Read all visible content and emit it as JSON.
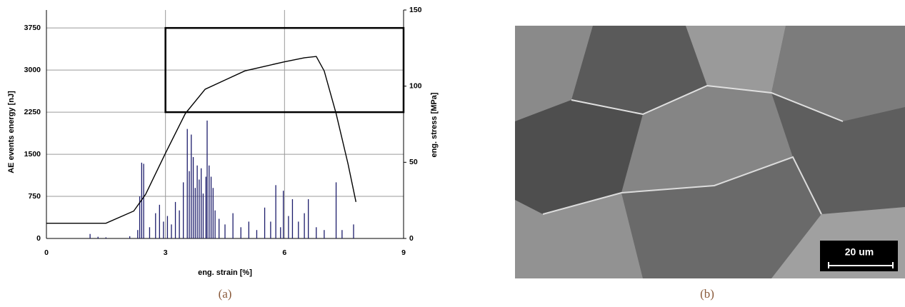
{
  "chart_data": {
    "type": "line",
    "xlabel": "eng. strain [%]",
    "ylabel": "AE events energy [nJ]",
    "y2label": "eng. stress [MPa]",
    "xlim": [
      0,
      9
    ],
    "xticks": [
      0,
      3,
      6,
      9
    ],
    "ylim": [
      0,
      4070
    ],
    "yticks": [
      0,
      750,
      1500,
      2250,
      3000,
      3750
    ],
    "y2lim": [
      0,
      150
    ],
    "y2ticks": [
      0,
      50,
      100,
      150
    ],
    "grid": true,
    "caption": "(a)",
    "highlight_box": {
      "x": [
        3,
        9
      ],
      "y": [
        2250,
        3750
      ]
    },
    "series": [
      {
        "type": "bar",
        "color": "#1c1c6b",
        "x": [
          1.1,
          1.3,
          1.5,
          2.1,
          2.3,
          2.35,
          2.4,
          2.45,
          2.6,
          2.75,
          2.85,
          2.95,
          3.05,
          3.15,
          3.25,
          3.35,
          3.45,
          3.55,
          3.6,
          3.65,
          3.7,
          3.75,
          3.8,
          3.85,
          3.9,
          3.95,
          4.02,
          4.05,
          4.1,
          4.15,
          4.2,
          4.25,
          4.35,
          4.5,
          4.7,
          4.9,
          5.1,
          5.3,
          5.5,
          5.65,
          5.78,
          5.9,
          5.97,
          6.1,
          6.2,
          6.35,
          6.5,
          6.6,
          6.8,
          7.0,
          7.3,
          7.45,
          7.74
        ],
        "values": [
          80,
          30,
          20,
          40,
          150,
          750,
          1350,
          1330,
          200,
          450,
          600,
          300,
          400,
          250,
          650,
          500,
          1000,
          1950,
          1200,
          1850,
          1450,
          900,
          1300,
          1050,
          1250,
          800,
          1100,
          2100,
          1300,
          1100,
          900,
          500,
          350,
          250,
          450,
          200,
          300,
          150,
          550,
          300,
          950,
          200,
          850,
          400,
          700,
          300,
          450,
          700,
          200,
          150,
          1000,
          150,
          250
        ]
      },
      {
        "type": "line",
        "axis": "y2",
        "color": "#000000",
        "x": [
          0,
          1.5,
          2.2,
          2.5,
          3,
          3.5,
          4,
          4.5,
          5,
          5.5,
          6,
          6.5,
          6.8,
          7.0,
          7.3,
          7.6,
          7.8
        ],
        "values": [
          10,
          10,
          18,
          29,
          56,
          82,
          98,
          104,
          110,
          113,
          116,
          118.6,
          119.5,
          110,
          82,
          49,
          24
        ]
      }
    ]
  },
  "image": {
    "caption": "(b)",
    "scale_bar": "20 um"
  }
}
